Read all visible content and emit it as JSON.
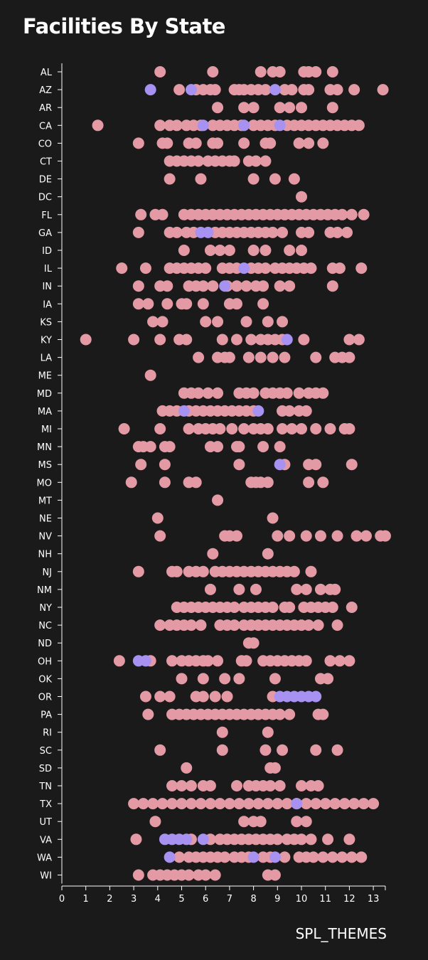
{
  "chart_data": {
    "type": "scatter",
    "title": "Facilities By State",
    "xlabel": "SPL_THEMES",
    "ylabel": "",
    "xlim": [
      0,
      13.5
    ],
    "x_ticks": [
      "0",
      "1",
      "2",
      "3",
      "4",
      "5",
      "6",
      "7",
      "8",
      "9",
      "10",
      "11",
      "12",
      "13"
    ],
    "categories": [
      "AL",
      "AZ",
      "AR",
      "CA",
      "CO",
      "CT",
      "DE",
      "DC",
      "FL",
      "GA",
      "ID",
      "IL",
      "IN",
      "IA",
      "KS",
      "KY",
      "LA",
      "ME",
      "MD",
      "MA",
      "MI",
      "MN",
      "MS",
      "MO",
      "MT",
      "NE",
      "NV",
      "NH",
      "NJ",
      "NM",
      "NY",
      "NC",
      "ND",
      "OH",
      "OK",
      "OR",
      "PA",
      "RI",
      "SC",
      "SD",
      "TN",
      "TX",
      "UT",
      "VA",
      "WA",
      "WI"
    ],
    "colors": {
      "pink": "#e49aa4",
      "purple": "#a792f2",
      "background": "#1a1a1a"
    },
    "grid": false,
    "series": [
      {
        "color": "pink",
        "points": {
          "AL": [
            4.1,
            6.3,
            8.3,
            8.8,
            9.1,
            10.1,
            10.3,
            10.6,
            11.3
          ],
          "AZ": [
            4.9,
            5.6,
            5.9,
            6.2,
            6.4,
            7.2,
            7.4,
            7.6,
            7.9,
            8.2,
            8.5,
            9.3,
            9.6,
            10.1,
            10.3,
            11.2,
            11.5,
            12.2,
            13.4
          ],
          "AR": [
            6.5,
            7.6,
            8.0,
            9.1,
            9.5,
            10.0,
            11.3
          ],
          "CA": [
            1.5,
            4.1,
            4.5,
            4.8,
            5.2,
            5.5,
            5.8,
            6.3,
            6.6,
            6.9,
            7.2,
            7.5,
            8.0,
            8.3,
            8.6,
            8.9,
            9.4,
            9.7,
            10.0,
            10.3,
            10.6,
            10.9,
            11.2,
            11.5,
            11.8,
            12.1,
            12.4
          ],
          "CO": [
            3.2,
            4.2,
            4.4,
            5.3,
            5.6,
            6.3,
            6.5,
            7.6,
            8.5,
            8.7,
            9.9,
            10.3,
            10.9
          ],
          "CT": [
            4.5,
            4.8,
            5.1,
            5.4,
            5.7,
            6.1,
            6.4,
            6.7,
            7.0,
            7.2,
            7.8,
            8.1,
            8.5
          ],
          "DE": [
            4.5,
            5.8,
            8.0,
            8.9,
            9.7
          ],
          "DC": [
            10.0
          ],
          "FL": [
            3.3,
            3.9,
            4.2,
            5.1,
            5.4,
            5.7,
            6.0,
            6.3,
            6.6,
            6.9,
            7.2,
            7.5,
            7.8,
            8.1,
            8.4,
            8.7,
            9.0,
            9.3,
            9.6,
            9.9,
            10.2,
            10.5,
            10.8,
            11.1,
            11.4,
            11.7,
            12.1,
            12.6
          ],
          "GA": [
            3.2,
            4.5,
            4.8,
            5.2,
            5.5,
            6.4,
            6.7,
            7.0,
            7.3,
            7.6,
            7.9,
            8.2,
            8.5,
            8.8,
            9.2,
            10.0,
            10.3,
            11.2,
            11.5,
            11.9
          ],
          "ID": [
            5.1,
            6.2,
            6.6,
            7.0,
            8.0,
            8.5,
            9.5,
            10.0
          ],
          "IL": [
            2.5,
            3.5,
            4.5,
            4.8,
            5.1,
            5.4,
            5.7,
            6.0,
            6.7,
            7.0,
            7.3,
            7.9,
            8.2,
            8.5,
            8.9,
            9.2,
            9.5,
            9.8,
            10.1,
            10.4,
            11.3,
            11.6,
            12.5
          ],
          "IN": [
            3.2,
            4.1,
            4.4,
            5.3,
            5.6,
            5.9,
            6.3,
            6.9,
            7.3,
            7.7,
            8.1,
            8.4,
            9.1,
            9.5,
            11.3
          ],
          "IA": [
            3.2,
            3.6,
            4.4,
            5.0,
            5.2,
            5.9,
            7.0,
            7.3,
            8.4
          ],
          "KS": [
            3.8,
            4.2,
            6.0,
            6.5,
            7.7,
            8.6,
            9.2
          ],
          "KY": [
            1.0,
            3.0,
            4.1,
            4.9,
            5.2,
            6.7,
            7.3,
            7.9,
            8.3,
            8.6,
            8.9,
            9.2,
            10.1,
            12.0,
            12.4
          ],
          "LA": [
            5.7,
            6.5,
            6.8,
            7.0,
            7.8,
            8.3,
            8.8,
            9.3,
            10.6,
            11.4,
            11.7,
            12.0
          ],
          "ME": [
            3.7
          ],
          "MD": [
            5.1,
            5.4,
            5.7,
            6.1,
            6.5,
            7.4,
            7.7,
            8.0,
            8.5,
            8.8,
            9.1,
            9.4,
            9.9,
            10.3,
            10.6,
            10.9
          ],
          "MA": [
            4.2,
            4.5,
            4.8,
            5.3,
            5.6,
            5.9,
            6.2,
            6.5,
            6.8,
            7.1,
            7.4,
            7.7,
            8.0,
            9.2,
            9.5,
            9.9,
            10.2
          ],
          "MI": [
            2.6,
            4.1,
            5.3,
            5.7,
            6.0,
            6.3,
            6.6,
            7.1,
            7.6,
            8.0,
            8.3,
            8.6,
            9.2,
            9.6,
            10.0,
            10.6,
            11.2,
            11.8,
            12.0
          ],
          "MN": [
            3.2,
            3.4,
            3.7,
            4.3,
            4.5,
            6.2,
            6.5,
            7.3,
            7.4,
            8.4,
            9.1
          ],
          "MS": [
            3.3,
            4.3,
            7.4,
            9.3,
            10.3,
            10.6,
            12.1
          ],
          "MO": [
            2.9,
            4.3,
            5.3,
            5.6,
            7.9,
            8.1,
            8.3,
            8.6,
            10.3,
            10.9
          ],
          "MT": [
            6.5
          ],
          "NE": [
            4.0,
            8.8
          ],
          "NV": [
            4.1,
            6.8,
            7.0,
            7.3,
            9.0,
            9.5,
            10.2,
            10.8,
            11.5,
            12.3,
            12.7,
            13.3,
            13.5
          ],
          "NH": [
            6.3,
            8.6
          ],
          "NJ": [
            3.2,
            4.6,
            4.8,
            5.3,
            5.6,
            5.9,
            6.4,
            6.7,
            7.0,
            7.3,
            7.6,
            7.9,
            8.2,
            8.5,
            8.8,
            9.1,
            9.4,
            9.7,
            10.4
          ],
          "NM": [
            6.2,
            7.4,
            8.1,
            9.8,
            10.2,
            10.8,
            11.2,
            11.4
          ],
          "NY": [
            4.8,
            5.1,
            5.4,
            5.7,
            6.0,
            6.3,
            6.6,
            6.9,
            7.2,
            7.6,
            7.9,
            8.2,
            8.5,
            8.8,
            9.3,
            9.5,
            10.1,
            10.4,
            10.7,
            11.0,
            11.3,
            12.1
          ],
          "NC": [
            4.1,
            4.5,
            4.8,
            5.1,
            5.4,
            5.8,
            6.6,
            6.9,
            7.2,
            7.6,
            7.9,
            8.2,
            8.5,
            8.8,
            9.1,
            9.4,
            9.7,
            10.0,
            10.3,
            10.7,
            11.5
          ],
          "ND": [
            7.8,
            8.0
          ],
          "OH": [
            2.4,
            3.7,
            4.6,
            5.0,
            5.3,
            5.6,
            5.9,
            6.1,
            6.5,
            7.5,
            7.7,
            8.4,
            8.7,
            9.0,
            9.3,
            9.6,
            9.9,
            10.2,
            11.2,
            11.6,
            12.0
          ],
          "OK": [
            5.0,
            5.9,
            6.8,
            7.4,
            8.9,
            10.8,
            11.1
          ],
          "OR": [
            3.5,
            4.1,
            4.5,
            5.6,
            5.9,
            6.4,
            6.9,
            8.8
          ],
          "PA": [
            3.6,
            4.6,
            4.9,
            5.2,
            5.5,
            5.8,
            6.1,
            6.4,
            6.7,
            7.0,
            7.3,
            7.6,
            7.9,
            8.2,
            8.5,
            8.8,
            9.1,
            9.5,
            10.7,
            10.9
          ],
          "RI": [
            6.7,
            8.6
          ],
          "SC": [
            4.1,
            6.7,
            8.5,
            9.2,
            10.6,
            11.5
          ],
          "SD": [
            5.2,
            8.7,
            8.9
          ],
          "TN": [
            4.6,
            5.0,
            5.4,
            5.9,
            6.2,
            7.3,
            7.8,
            8.1,
            8.4,
            8.7,
            9.1,
            10.0,
            10.4,
            10.7
          ],
          "TX": [
            3.0,
            3.4,
            3.8,
            4.2,
            4.6,
            5.0,
            5.4,
            5.8,
            6.2,
            6.6,
            7.0,
            7.4,
            7.8,
            8.2,
            8.6,
            9.0,
            9.4,
            9.8,
            10.2,
            10.6,
            11.0,
            11.4,
            11.8,
            12.2,
            12.6,
            13.0
          ],
          "UT": [
            3.9,
            7.6,
            8.0,
            8.3,
            9.8,
            10.2
          ],
          "VA": [
            3.1,
            5.4,
            6.2,
            6.6,
            6.9,
            7.2,
            7.5,
            7.8,
            8.1,
            8.4,
            8.7,
            9.0,
            9.4,
            9.7,
            10.0,
            10.4,
            11.1,
            12.0
          ],
          "WA": [
            4.9,
            5.3,
            5.6,
            5.9,
            6.2,
            6.5,
            6.8,
            7.2,
            7.5,
            7.8,
            8.4,
            8.7,
            9.3,
            9.9,
            10.2,
            10.5,
            10.9,
            11.3,
            11.7,
            12.1,
            12.5
          ],
          "WI": [
            3.2,
            3.8,
            4.1,
            4.4,
            4.7,
            5.0,
            5.3,
            5.7,
            6.0,
            6.4,
            8.6,
            8.9
          ]
        }
      },
      {
        "color": "purple",
        "points": {
          "AZ": [
            3.7,
            5.4,
            8.9
          ],
          "CA": [
            5.9,
            7.6,
            9.1
          ],
          "GA": [
            5.8,
            6.1
          ],
          "IL": [
            7.6
          ],
          "IN": [
            6.8
          ],
          "KY": [
            9.4
          ],
          "MA": [
            5.1,
            8.2
          ],
          "MS": [
            9.1
          ],
          "OH": [
            3.2,
            3.5
          ],
          "OR": [
            9.1,
            9.4,
            9.7,
            10.0,
            10.3,
            10.6
          ],
          "TX": [
            9.8
          ],
          "VA": [
            4.3,
            4.6,
            4.9,
            5.2,
            5.9
          ],
          "WA": [
            4.5,
            8.0,
            8.9
          ]
        }
      }
    ]
  }
}
